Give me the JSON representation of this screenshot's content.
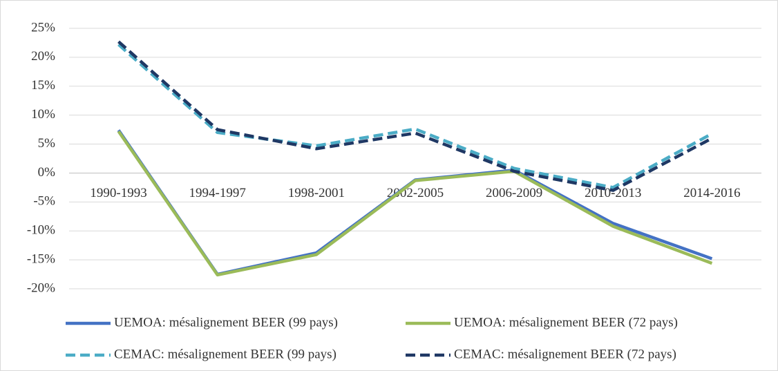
{
  "chart_data": {
    "type": "line",
    "categories": [
      "1990-1993",
      "1994-1997",
      "1998-2001",
      "2002-2005",
      "2006-2009",
      "2010-2013",
      "2014-2016"
    ],
    "series": [
      {
        "name": "UEMOA: mésalignement BEER (99 pays)",
        "color": "#4472c4",
        "dashed": false,
        "values": [
          7.4,
          -17.5,
          -13.8,
          -1.2,
          0.5,
          -8.7,
          -14.8
        ]
      },
      {
        "name": "UEMOA: mésalignement BEER (72 pays)",
        "color": "#9bbb59",
        "dashed": false,
        "values": [
          7.2,
          -17.6,
          -14.1,
          -1.3,
          0.3,
          -9.2,
          -15.6
        ]
      },
      {
        "name": "CEMAC: mésalignement BEER (99 pays)",
        "color": "#4bacc6",
        "dashed": true,
        "values": [
          22.2,
          7.0,
          4.7,
          7.6,
          0.8,
          -2.5,
          6.8
        ]
      },
      {
        "name": "CEMAC: mésalignement BEER (72 pays)",
        "color": "#1f3864",
        "dashed": true,
        "values": [
          22.7,
          7.5,
          4.2,
          6.9,
          0.3,
          -3.0,
          6.0
        ]
      }
    ],
    "ylim": [
      -20,
      25
    ],
    "yticks": [
      {
        "value": -20,
        "label": "-20%"
      },
      {
        "value": -15,
        "label": "-15%"
      },
      {
        "value": -10,
        "label": "-10%"
      },
      {
        "value": -5,
        "label": "-5%"
      },
      {
        "value": 0,
        "label": "0%"
      },
      {
        "value": 5,
        "label": "5%"
      },
      {
        "value": 10,
        "label": "10%"
      },
      {
        "value": 15,
        "label": "15%"
      },
      {
        "value": 20,
        "label": "20%"
      },
      {
        "value": 25,
        "label": "25%"
      }
    ],
    "grid": true,
    "legend": "bottom"
  }
}
